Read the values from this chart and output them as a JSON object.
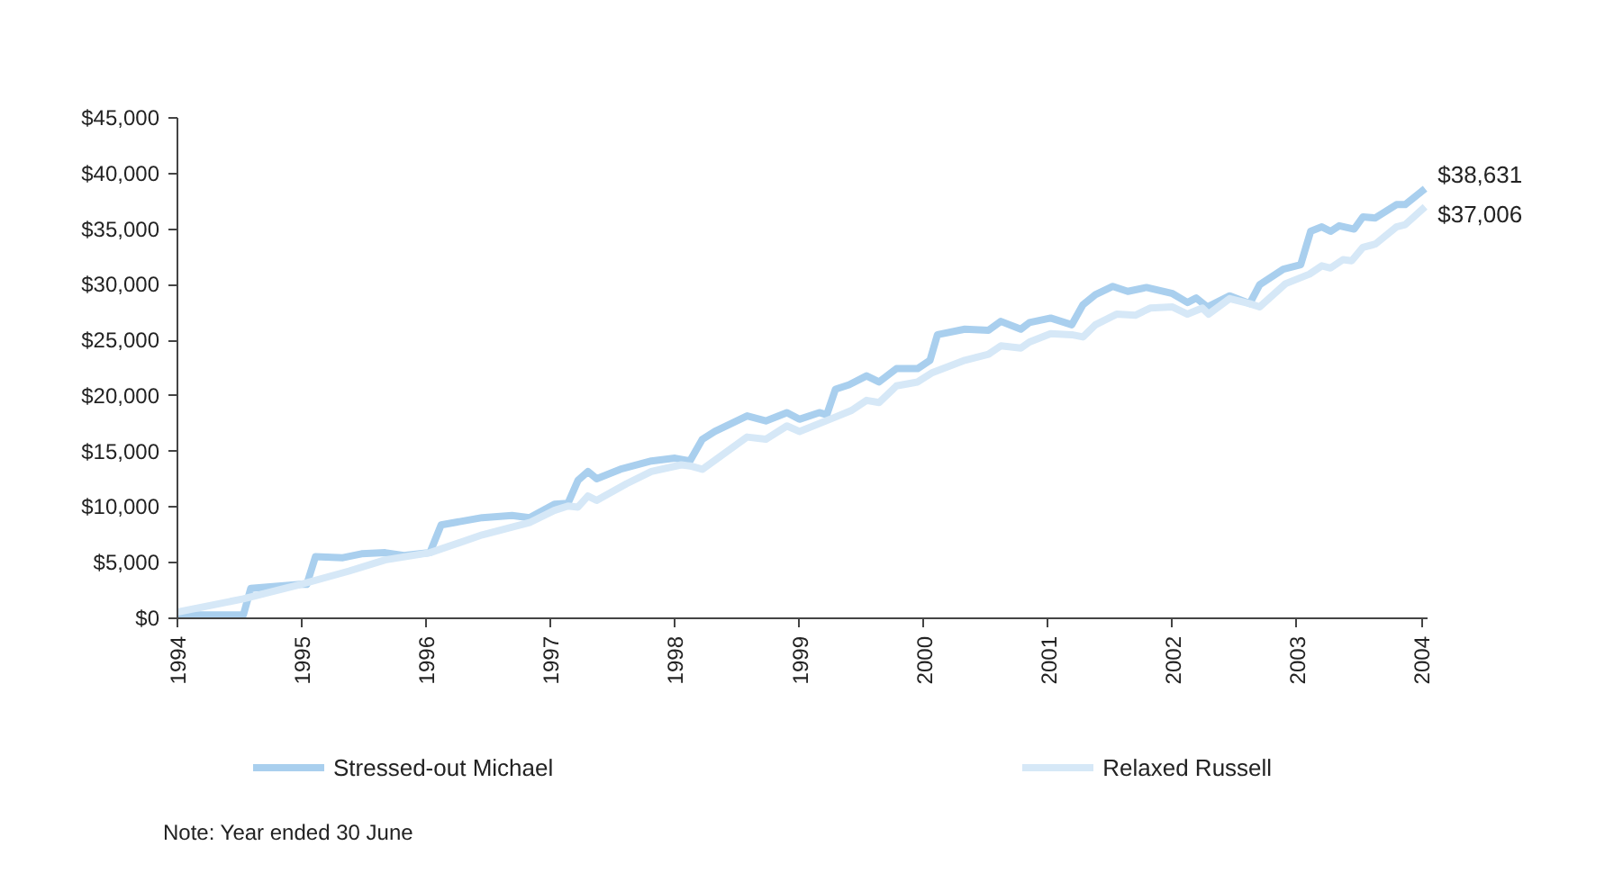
{
  "chart_data": {
    "type": "line",
    "xlim": [
      1994,
      2004.05
    ],
    "ylim": [
      0,
      45000
    ],
    "xticks": [
      1994,
      1995,
      1996,
      1997,
      1998,
      1999,
      2000,
      2001,
      2002,
      2003,
      2004
    ],
    "yticks": [
      {
        "value": 0,
        "label": "$0"
      },
      {
        "value": 5000,
        "label": "$5,000"
      },
      {
        "value": 10000,
        "label": "$10,000"
      },
      {
        "value": 15000,
        "label": "$15,000"
      },
      {
        "value": 20000,
        "label": "$20,000"
      },
      {
        "value": 25000,
        "label": "$25,000"
      },
      {
        "value": 30000,
        "label": "$30,000"
      },
      {
        "value": 35000,
        "label": "$35,000"
      },
      {
        "value": 40000,
        "label": "$40,000"
      },
      {
        "value": 45000,
        "label": "$45,000"
      }
    ],
    "grid": false,
    "legend": "bottom",
    "marker": "none",
    "line_style": "solid",
    "series": [
      {
        "name": "Stressed-out Michael",
        "color": "#a9cfee",
        "x": [
          1994,
          1994.53,
          1994.59,
          1994.99,
          1995.04,
          1995.11,
          1995.33,
          1995.48,
          1995.67,
          1995.82,
          1996.03,
          1996.12,
          1996.45,
          1996.69,
          1996.83,
          1997.03,
          1997.14,
          1997.22,
          1997.3,
          1997.37,
          1997.56,
          1997.81,
          1998.0,
          1998.12,
          1998.22,
          1998.32,
          1998.58,
          1998.73,
          1998.9,
          1999.0,
          1999.16,
          1999.22,
          1999.29,
          1999.4,
          1999.54,
          1999.64,
          1999.78,
          1999.95,
          2000.05,
          2000.11,
          2000.33,
          2000.52,
          2000.62,
          2000.78,
          2000.85,
          2001.02,
          2001.19,
          2001.28,
          2001.38,
          2001.52,
          2001.64,
          2001.79,
          2002.0,
          2002.12,
          2002.19,
          2002.28,
          2002.46,
          2002.62,
          2002.7,
          2002.89,
          2003.03,
          2003.11,
          2003.2,
          2003.27,
          2003.34,
          2003.46,
          2003.53,
          2003.63,
          2003.8,
          2003.87,
          2004.03
        ],
        "values": [
          300,
          300,
          2700,
          3050,
          3050,
          5550,
          5450,
          5800,
          5900,
          5650,
          5900,
          8400,
          9050,
          9250,
          9050,
          10250,
          10350,
          12400,
          13200,
          12550,
          13400,
          14150,
          14400,
          14150,
          16100,
          16800,
          18200,
          17750,
          18500,
          17900,
          18500,
          18300,
          20600,
          21000,
          21800,
          21250,
          22450,
          22450,
          23200,
          25500,
          26000,
          25900,
          26700,
          26000,
          26600,
          27000,
          26400,
          28200,
          29100,
          29850,
          29400,
          29750,
          29200,
          28400,
          28800,
          28000,
          29000,
          28300,
          30000,
          31400,
          31800,
          34800,
          35200,
          34800,
          35300,
          35000,
          36100,
          36000,
          37200,
          37200,
          38631
        ]
      },
      {
        "name": "Relaxed Russell",
        "color": "#d6e8f7",
        "x": [
          1994,
          1994.53,
          1994.99,
          1995.38,
          1995.67,
          1996.03,
          1996.45,
          1996.83,
          1997.03,
          1997.14,
          1997.22,
          1997.3,
          1997.37,
          1997.61,
          1997.81,
          1998.05,
          1998.12,
          1998.22,
          1998.58,
          1998.73,
          1998.9,
          1999.0,
          1999.29,
          1999.42,
          1999.54,
          1999.64,
          1999.78,
          1999.95,
          2000.07,
          2000.33,
          2000.52,
          2000.62,
          2000.78,
          2000.85,
          2001.02,
          2001.19,
          2001.28,
          2001.38,
          2001.55,
          2001.7,
          2001.82,
          2002.0,
          2002.12,
          2002.24,
          2002.29,
          2002.46,
          2002.62,
          2002.7,
          2002.91,
          2003.1,
          2003.2,
          2003.27,
          2003.37,
          2003.44,
          2003.53,
          2003.63,
          2003.8,
          2003.87,
          2004.03
        ],
        "values": [
          550,
          1750,
          3050,
          4250,
          5250,
          5900,
          7500,
          8600,
          9700,
          10100,
          10000,
          11000,
          10600,
          12100,
          13200,
          13800,
          13700,
          13400,
          16300,
          16100,
          17300,
          16800,
          18100,
          18700,
          19600,
          19400,
          20900,
          21250,
          22100,
          23200,
          23750,
          24500,
          24300,
          24850,
          25600,
          25500,
          25300,
          26400,
          27350,
          27250,
          27900,
          28000,
          27350,
          27900,
          27350,
          28750,
          28300,
          28000,
          30100,
          30950,
          31700,
          31500,
          32250,
          32150,
          33350,
          33650,
          35200,
          35400,
          37006
        ]
      }
    ],
    "annotations": [
      {
        "text": "$38,631",
        "x": 2004.03,
        "y": 38631
      },
      {
        "text": "$37,006",
        "x": 2004.03,
        "y": 37006
      },
      "Note: Year ended 30 June"
    ]
  }
}
